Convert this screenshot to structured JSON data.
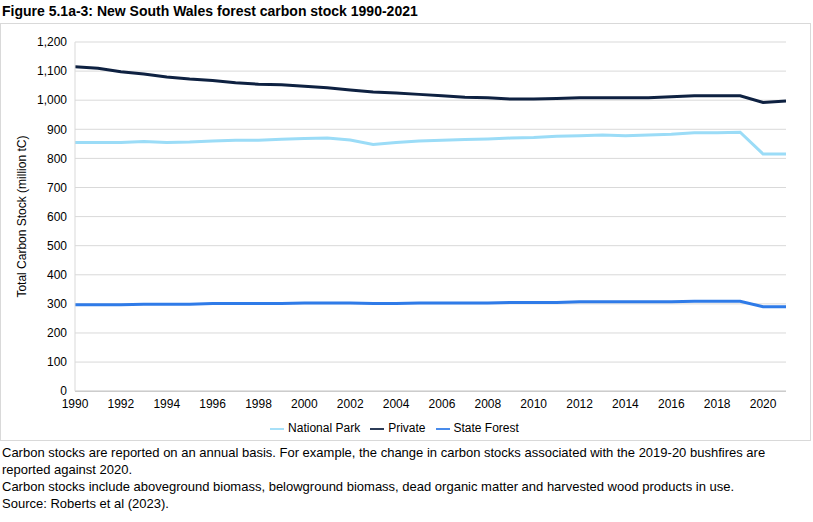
{
  "chart_data": {
    "type": "line",
    "title": "Figure 5.1a-3: New South Wales forest carbon stock 1990-2021",
    "y_label": "Total Carbon Stock (million tC)",
    "annotations": [
      "Carbon stocks are reported on an annual basis. For example, the change in carbon stocks associated with the 2019-20 bushfires are reported against 2020.",
      "Carbon stocks include aboveground biomass, belowground biomass, dead organic matter and harvested wood products in use.",
      "Source: Roberts et al (2023)."
    ],
    "x": [
      1990,
      1991,
      1992,
      1993,
      1994,
      1995,
      1996,
      1997,
      1998,
      1999,
      2000,
      2001,
      2002,
      2003,
      2004,
      2005,
      2006,
      2007,
      2008,
      2009,
      2010,
      2011,
      2012,
      2013,
      2014,
      2015,
      2016,
      2017,
      2018,
      2019,
      2020,
      2021
    ],
    "series": [
      {
        "name": "Private",
        "color": "#0e2141",
        "values": [
          1115,
          1110,
          1098,
          1090,
          1080,
          1073,
          1068,
          1060,
          1055,
          1053,
          1048,
          1043,
          1035,
          1028,
          1025,
          1020,
          1015,
          1010,
          1008,
          1004,
          1004,
          1006,
          1008,
          1008,
          1008,
          1008,
          1012,
          1015,
          1015,
          1015,
          992,
          997
        ]
      },
      {
        "name": "National Park",
        "color": "#9bdcf7",
        "values": [
          855,
          855,
          855,
          858,
          855,
          856,
          860,
          862,
          862,
          866,
          868,
          870,
          863,
          848,
          855,
          860,
          862,
          865,
          867,
          870,
          872,
          876,
          878,
          880,
          878,
          880,
          883,
          888,
          888,
          890,
          815,
          815
        ]
      },
      {
        "name": "State Forest",
        "color": "#2f7be8",
        "values": [
          297,
          297,
          297,
          299,
          299,
          299,
          301,
          301,
          301,
          301,
          303,
          303,
          303,
          301,
          301,
          303,
          303,
          303,
          303,
          305,
          305,
          305,
          307,
          307,
          307,
          307,
          307,
          309,
          309,
          309,
          290,
          290
        ]
      }
    ],
    "xlim": [
      1990,
      2021
    ],
    "xticks": [
      1990,
      1992,
      1994,
      1996,
      1998,
      2000,
      2002,
      2004,
      2006,
      2008,
      2010,
      2012,
      2014,
      2016,
      2018,
      2020
    ],
    "ylim": [
      0,
      1200
    ],
    "yticks": [
      0,
      100,
      200,
      300,
      400,
      500,
      600,
      700,
      800,
      900,
      {
        "value": 1000,
        "label": "1,000"
      },
      {
        "value": 1100,
        "label": "1,100"
      },
      {
        "value": 1200,
        "label": "1,200"
      }
    ],
    "grid": true,
    "legend": "bottom"
  }
}
